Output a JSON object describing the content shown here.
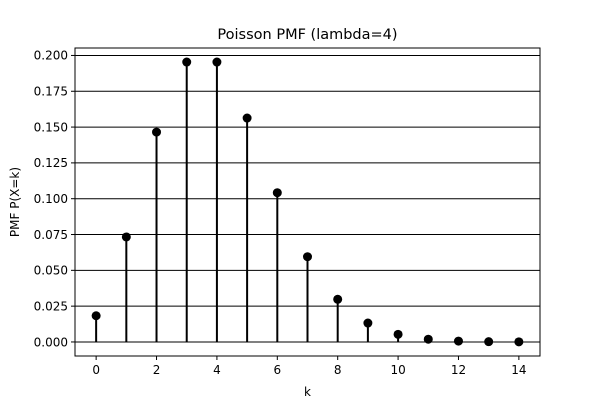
{
  "chart_data": {
    "type": "stem",
    "title": "Poisson PMF (lambda=4)",
    "xlabel": "k",
    "ylabel": "PMF P(X=k)",
    "x": [
      0,
      1,
      2,
      3,
      4,
      5,
      6,
      7,
      8,
      9,
      10,
      11,
      12,
      13,
      14
    ],
    "values": [
      0.0183,
      0.0733,
      0.1465,
      0.1954,
      0.1954,
      0.1563,
      0.1042,
      0.0595,
      0.0298,
      0.0132,
      0.0053,
      0.0019,
      0.0006,
      0.0002,
      0.0001
    ],
    "xlim": [
      -0.7,
      14.7
    ],
    "ylim": [
      -0.0098,
      0.2052
    ],
    "xticks": [
      0,
      2,
      4,
      6,
      8,
      10,
      12,
      14
    ],
    "yticks": [
      0.0,
      0.025,
      0.05,
      0.075,
      0.1,
      0.125,
      0.15,
      0.175,
      0.2
    ],
    "ytick_labels": [
      "0.000",
      "0.025",
      "0.050",
      "0.075",
      "0.100",
      "0.125",
      "0.150",
      "0.175",
      "0.200"
    ],
    "grid": "horizontal",
    "colors": {
      "marker": "#000000",
      "stem": "#000000",
      "grid": "#000000"
    }
  }
}
